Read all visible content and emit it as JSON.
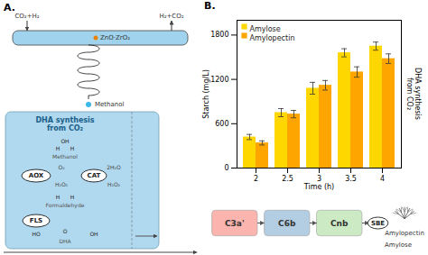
{
  "chart_data": {
    "type": "bar",
    "title": "B.",
    "categories": [
      "2",
      "2.5",
      "3",
      "3.5",
      "4"
    ],
    "series": [
      {
        "name": "Amylose",
        "color": "#FFD700",
        "values": [
          420,
          750,
          1080,
          1560,
          1650
        ],
        "errors": [
          35,
          55,
          80,
          55,
          55
        ]
      },
      {
        "name": "Amylopectin",
        "color": "#FFA500",
        "values": [
          340,
          730,
          1120,
          1300,
          1480
        ],
        "errors": [
          28,
          50,
          65,
          70,
          65
        ]
      }
    ],
    "xlabel": "Time (h)",
    "ylabel": "Starch (mg/L)",
    "y2label": "DHA synthesis\nfrom CO₂",
    "ylim": [
      0,
      2000
    ],
    "yticks": [
      0,
      600,
      1200,
      1800
    ],
    "legend": "upper left",
    "grid": false,
    "annotations": [
      "A.",
      "CO₂+H₂",
      "H₂+CO₂",
      "ZnO·ZrO₂",
      "Methanol",
      "DHA synthesis\nfrom CO₂",
      "OH",
      "H",
      "H",
      "Methanol",
      "AOX",
      "CAT",
      "O₂",
      "2H₂O",
      "H₂O₂",
      "H₂O₂",
      "H",
      "H",
      "Formaldehyde",
      "FLS",
      "HO",
      "O",
      "OH",
      "DHA",
      "C3a'",
      "C6b",
      "Cnb",
      "SBE",
      "Amylose",
      "Amylopectin"
    ]
  }
}
